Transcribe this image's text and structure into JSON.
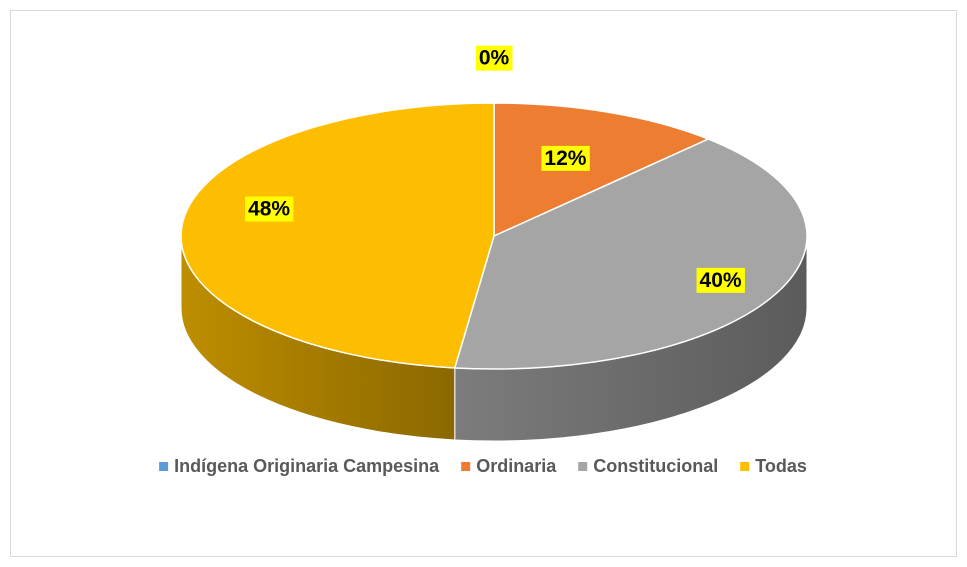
{
  "chart_data": {
    "type": "pie",
    "categories": [
      "Indígena Originaria Campesina",
      "Ordinaria",
      "Constitucional",
      "Todas"
    ],
    "values": [
      0,
      12,
      40,
      48
    ],
    "value_labels": [
      "0%",
      "12%",
      "40%",
      "48%"
    ],
    "colors": [
      "#5b9bd5",
      "#ed7d31",
      "#a5a5a5",
      "#fdbd00"
    ],
    "legend": "bottom"
  }
}
